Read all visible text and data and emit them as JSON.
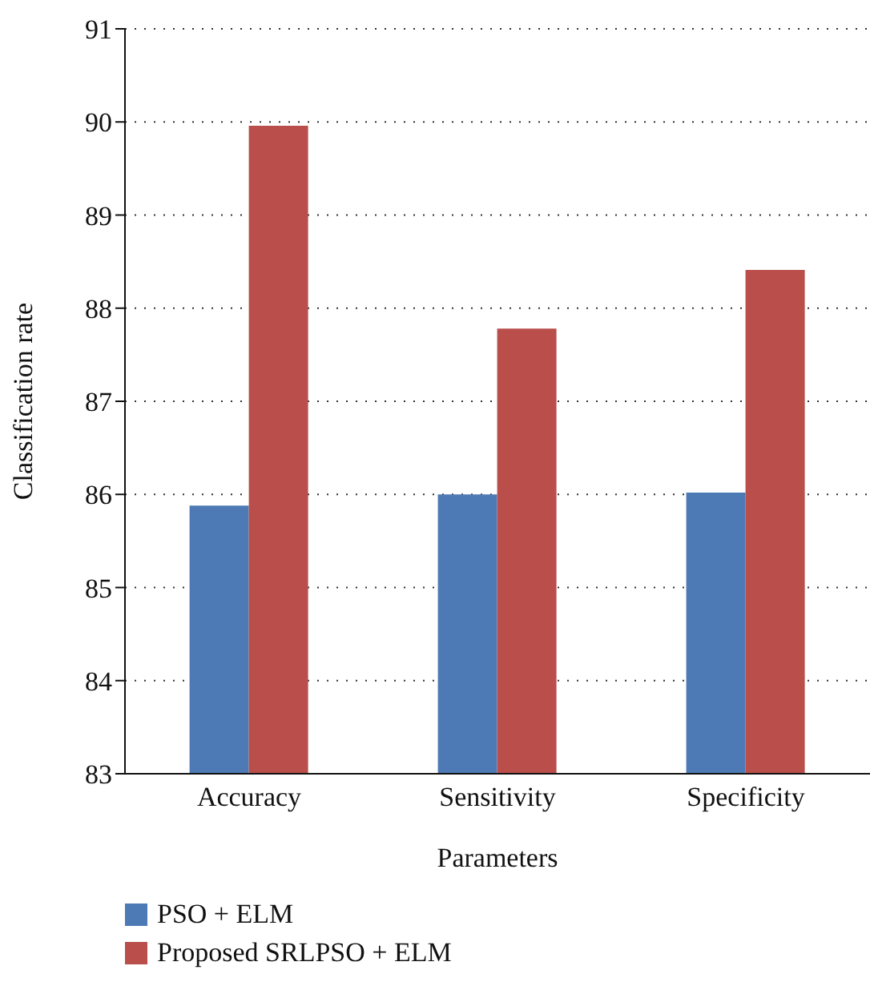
{
  "chart_data": {
    "type": "bar",
    "xlabel": "Parameters",
    "ylabel": "Classification rate",
    "categories": [
      "Accuracy",
      "Sensitivity",
      "Specificity"
    ],
    "series": [
      {
        "name": "PSO + ELM",
        "color": "#4d7ab5",
        "values": [
          85.88,
          86.0,
          86.02
        ]
      },
      {
        "name": "Proposed SRLPSO + ELM",
        "color": "#b94e4b",
        "values": [
          89.96,
          87.78,
          88.41
        ]
      }
    ],
    "ylim": [
      83,
      91
    ],
    "yticks": [
      83,
      84,
      85,
      86,
      87,
      88,
      89,
      90,
      91
    ],
    "grid": "y",
    "legend": "bottom left"
  }
}
